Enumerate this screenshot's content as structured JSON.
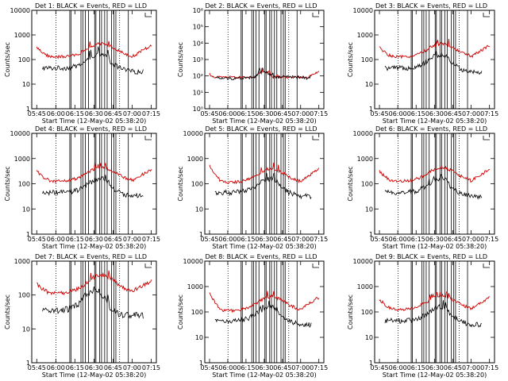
{
  "chart_data": [
    {
      "type": "line",
      "title": "Det 1: BLACK = Events, RED = LLD",
      "xlabel": "Start Time (12-May-02 05:38:20)",
      "ylabel": "Counts/sec",
      "ylim_log": [
        0,
        4
      ],
      "x_ticks": [
        "05:45",
        "06:00",
        "06:15",
        "06:30",
        "06:45",
        "07:00",
        "07:15"
      ],
      "y_ticks": [
        "1",
        "10",
        "100",
        "1000",
        "10000"
      ],
      "variant": "a"
    },
    {
      "type": "line",
      "title": "Det 2: BLACK = Events, RED = LLD",
      "xlabel": "Start Time (12-May-02 05:38:20)",
      "ylabel": "Counts/sec",
      "ylim_log": [
        0,
        6
      ],
      "x_ticks": [
        "05:45",
        "06:00",
        "06:15",
        "06:30",
        "06:45",
        "07:00",
        "07:15"
      ],
      "y_ticks": [
        "10⁰",
        "10¹",
        "10²",
        "10³",
        "10⁴",
        "10⁵",
        "10⁶"
      ],
      "variant": "b"
    },
    {
      "type": "line",
      "title": "Det 3: BLACK = Events, RED = LLD",
      "xlabel": "Start Time (12-May-02 05:38:20)",
      "ylabel": "Counts/sec",
      "ylim_log": [
        0,
        4
      ],
      "x_ticks": [
        "05:45",
        "06:00",
        "06:15",
        "06:30",
        "06:45",
        "07:00",
        "07:15"
      ],
      "y_ticks": [
        "1",
        "10",
        "100",
        "1000",
        "10000"
      ],
      "variant": "a"
    },
    {
      "type": "line",
      "title": "Det 4: BLACK = Events, RED = LLD",
      "xlabel": "Start Time (12-May-02 05:38:20)",
      "ylabel": "Counts/sec",
      "ylim_log": [
        0,
        4
      ],
      "x_ticks": [
        "05:45",
        "06:00",
        "06:15",
        "06:30",
        "06:45",
        "07:00",
        "07:15"
      ],
      "y_ticks": [
        "1",
        "10",
        "100",
        "1000",
        "10000"
      ],
      "variant": "a"
    },
    {
      "type": "line",
      "title": "Det 5: BLACK = Events, RED = LLD",
      "xlabel": "Start Time (12-May-02 05:38:20)",
      "ylabel": "Counts/sec",
      "ylim_log": [
        0,
        4
      ],
      "x_ticks": [
        "05:45",
        "06:00",
        "06:15",
        "06:30",
        "06:45",
        "07:00",
        "07:15"
      ],
      "y_ticks": [
        "1",
        "10",
        "100",
        "1000",
        "10000"
      ],
      "variant": "c"
    },
    {
      "type": "line",
      "title": "Det 6: BLACK = Events, RED = LLD",
      "xlabel": "Start Time (12-May-02 05:38:20)",
      "ylabel": "Counts/sec",
      "ylim_log": [
        0,
        4
      ],
      "x_ticks": [
        "05:45",
        "06:00",
        "06:15",
        "06:30",
        "06:45",
        "07:00",
        "07:15"
      ],
      "y_ticks": [
        "1",
        "10",
        "100",
        "1000",
        "10000"
      ],
      "variant": "a"
    },
    {
      "type": "line",
      "title": "Det 7: BLACK = Events, RED = LLD",
      "xlabel": "Start Time (12-May-02 05:38:20)",
      "ylabel": "Counts/sec",
      "ylim_log": [
        0,
        3
      ],
      "x_ticks": [
        "05:45",
        "06:00",
        "06:15",
        "06:30",
        "06:45",
        "07:00",
        "07:15"
      ],
      "y_ticks": [
        "1",
        "10",
        "100",
        "1000"
      ],
      "variant": "d"
    },
    {
      "type": "line",
      "title": "Det 8: BLACK = Events, RED = LLD",
      "xlabel": "Start Time (12-May-02 05:38:20)",
      "ylabel": "Counts/sec",
      "ylim_log": [
        0,
        4
      ],
      "x_ticks": [
        "05:45",
        "06:00",
        "06:15",
        "06:30",
        "06:45",
        "07:00",
        "07:15"
      ],
      "y_ticks": [
        "1",
        "10",
        "100",
        "1000",
        "10000"
      ],
      "variant": "c"
    },
    {
      "type": "line",
      "title": "Det 9: BLACK = Events, RED = LLD",
      "xlabel": "Start Time (12-May-02 05:38:20)",
      "ylabel": "Counts/sec",
      "ylim_log": [
        0,
        4
      ],
      "x_ticks": [
        "05:45",
        "06:00",
        "06:15",
        "06:30",
        "06:45",
        "07:00",
        "07:15"
      ],
      "y_ticks": [
        "1",
        "10",
        "100",
        "1000",
        "10000"
      ],
      "variant": "a"
    }
  ],
  "colors": {
    "events": "#000000",
    "lld": "#d00000",
    "axis": "#000000"
  }
}
